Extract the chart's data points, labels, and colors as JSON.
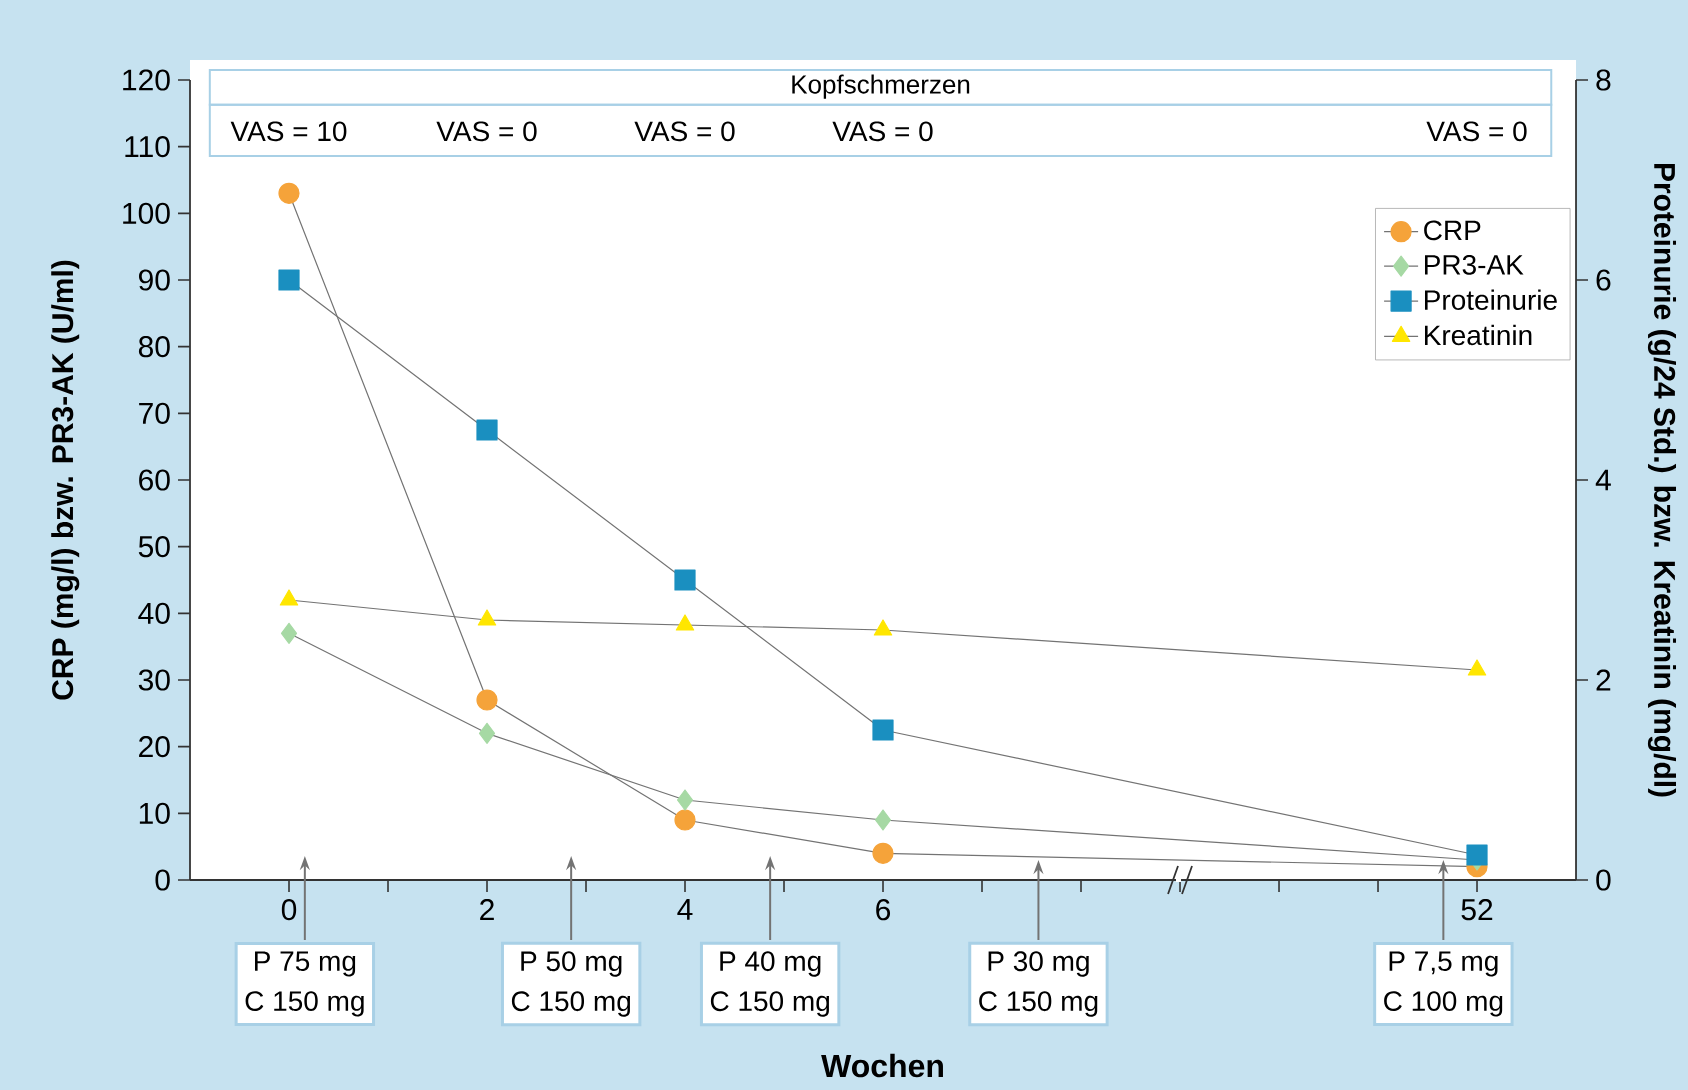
{
  "chart_data": {
    "type": "line",
    "categories": [
      "0",
      null,
      "2",
      null,
      "4",
      null,
      "6",
      null,
      null,
      null,
      null,
      null,
      "52"
    ],
    "series": [
      {
        "name": "CRP",
        "color": "#f5a33a",
        "marker": "circle",
        "values": [
          103,
          null,
          27,
          null,
          9,
          null,
          4,
          null,
          null,
          null,
          null,
          null,
          2
        ]
      },
      {
        "name": "PR3-AK",
        "color": "#a6d9a4",
        "marker": "diamond",
        "values": [
          37,
          null,
          22,
          null,
          12,
          null,
          9,
          null,
          null,
          null,
          null,
          null,
          3
        ]
      },
      {
        "name": "Proteinurie",
        "color": "#1a8fc0",
        "marker": "square",
        "axis": "y2",
        "values": [
          6,
          null,
          4.5,
          null,
          3,
          null,
          1.5,
          null,
          null,
          null,
          null,
          null,
          0.25
        ]
      },
      {
        "name": "Kreatinin",
        "color": "#ffe600",
        "marker": "triangle",
        "axis": "y2",
        "values": [
          2.8,
          null,
          2.6,
          null,
          2.55,
          null,
          2.5,
          null,
          null,
          null,
          null,
          null,
          2.1
        ]
      }
    ],
    "ylim": [
      0,
      120
    ],
    "yticks": [
      0,
      10,
      20,
      30,
      40,
      50,
      60,
      70,
      80,
      90,
      100,
      110,
      120
    ],
    "y2lim": [
      0,
      8
    ],
    "y2ticks": [
      0,
      2,
      4,
      6,
      8
    ],
    "xlabel": "Wochen",
    "ylabel": "CRP (mg/l) bzw. PR3-AK (U/ml)",
    "y2label": "Proteinurie (g/24 Std.) bzw. Kreatinin (mg/dl)",
    "legend": "top right",
    "annotations": [
      "Kopfschmerzen",
      "VAS = 10",
      "VAS = 0",
      "VAS = 0",
      "VAS = 0",
      "VAS = 0",
      "P 75 mg",
      "C 150 mg",
      "P 50 mg",
      "C 150 mg",
      "P 40 mg",
      "C 150 mg",
      {
        "text": "P 30 mg",
        "y": 3
      },
      "C 150 mg",
      {
        "text": "P 7,5 mg",
        "y": 3
      },
      "C 100 mg"
    ]
  }
}
